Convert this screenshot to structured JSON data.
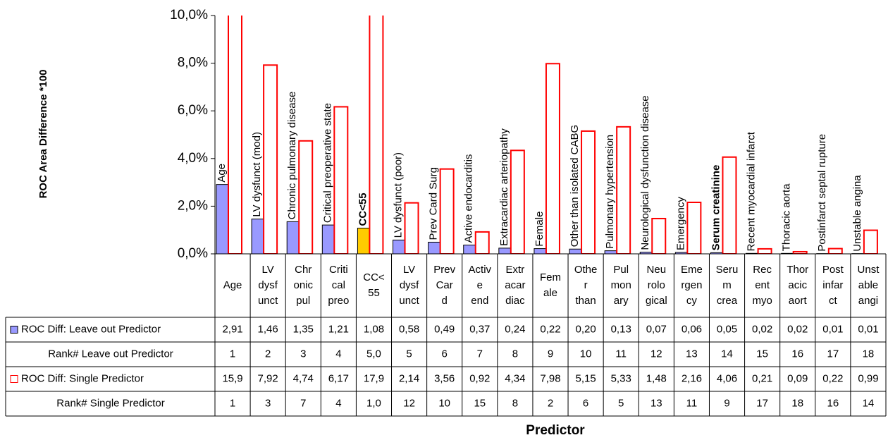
{
  "chart_data": {
    "type": "bar",
    "x_label": "Predictor",
    "y_label": "ROC Area Difference *100",
    "ylim": [
      0,
      10
    ],
    "yticks": [
      {
        "value": 0,
        "label": "0,0%"
      },
      {
        "value": 2,
        "label": "2,0%"
      },
      {
        "value": 4,
        "label": "4,0%"
      },
      {
        "value": 6,
        "label": "6,0%"
      },
      {
        "value": 8,
        "label": "8,0%"
      },
      {
        "value": 10,
        "label": "10,0%"
      }
    ],
    "grid": false,
    "categories": [
      [
        "Age"
      ],
      [
        "LV",
        "dysf",
        "unct"
      ],
      [
        "Chr",
        "onic",
        "pul"
      ],
      [
        "Criti",
        "cal",
        "preo"
      ],
      [
        "CC<",
        "55"
      ],
      [
        "LV",
        "dysf",
        "unct"
      ],
      [
        "Prev",
        "Car",
        "d"
      ],
      [
        "Activ",
        "e",
        "end"
      ],
      [
        "Extr",
        "acar",
        "diac"
      ],
      [
        "Fem",
        "ale"
      ],
      [
        "Othe",
        "r",
        "than"
      ],
      [
        "Pul",
        "mon",
        "ary"
      ],
      [
        "Neu",
        "rolo",
        "gical"
      ],
      [
        "Eme",
        "rgen",
        "cy"
      ],
      [
        "Seru",
        "m",
        "crea"
      ],
      [
        "Rec",
        "ent",
        "myo"
      ],
      [
        "Thor",
        "acic",
        "aort"
      ],
      [
        "Post",
        "infar",
        "ct"
      ],
      [
        "Unst",
        "able",
        "angi"
      ]
    ],
    "bar_labels": [
      {
        "text": "Age"
      },
      {
        "text": "LV dysfunct (mod)"
      },
      {
        "text": "Chronic pulmonary disease"
      },
      {
        "text": "Critical preoperative state"
      },
      {
        "text": "CC<55",
        "bold": true
      },
      {
        "text": "LV dysfunct (poor)"
      },
      {
        "text": "Prev Card Surg"
      },
      {
        "text": "Active endocarditis"
      },
      {
        "text": "Extracardiac arteriopathy"
      },
      {
        "text": "Female"
      },
      {
        "text": "Other than isolated CABG"
      },
      {
        "text": "Pulmonary hypertension"
      },
      {
        "text": "Neurological dysfunction disease"
      },
      {
        "text": "Emergency"
      },
      {
        "text": "Serum creatinine",
        "bold": true
      },
      {
        "text": "Recent myocardial infarct"
      },
      {
        "text": "Thoracic aorta"
      },
      {
        "text": "Postinfarct septal rupture"
      },
      {
        "text": "Unstable angina"
      }
    ],
    "series": [
      {
        "name": "ROC Diff: Leave out Predictor",
        "color": "#9999ff",
        "highlight": {
          "index": 4,
          "color": "#ffcc00"
        },
        "style": "filled",
        "values": [
          2.91,
          1.46,
          1.35,
          1.21,
          1.08,
          0.58,
          0.49,
          0.37,
          0.24,
          0.22,
          0.2,
          0.13,
          0.07,
          0.06,
          0.05,
          0.02,
          0.02,
          0.01,
          0.01
        ],
        "value_labels": [
          "2,91",
          "1,46",
          "1,35",
          "1,21",
          "1,08",
          "0,58",
          "0,49",
          "0,37",
          "0,24",
          "0,22",
          "0,20",
          "0,13",
          "0,07",
          "0,06",
          "0,05",
          "0,02",
          "0,02",
          "0,01",
          "0,01"
        ]
      },
      {
        "name": "ROC Diff: Single Predictor",
        "color": "#ff0000",
        "style": "outline",
        "values": [
          15.9,
          7.92,
          4.74,
          6.17,
          17.9,
          2.14,
          3.56,
          0.92,
          4.34,
          7.98,
          5.15,
          5.33,
          1.48,
          2.16,
          4.06,
          0.21,
          0.09,
          0.22,
          0.99
        ],
        "value_labels": [
          "15,9",
          "7,92",
          "4,74",
          "6,17",
          "17,9",
          "2,14",
          "3,56",
          "0,92",
          "4,34",
          "7,98",
          "5,15",
          "5,33",
          "1,48",
          "2,16",
          "4,06",
          "0,21",
          "0,09",
          "0,22",
          "0,99"
        ]
      }
    ],
    "rank_rows": [
      {
        "name": "Rank# Leave out Predictor",
        "after_series": 0,
        "values": [
          1,
          2,
          3,
          4,
          5,
          5,
          6,
          7,
          8,
          9,
          10,
          11,
          12,
          13,
          14,
          15,
          16,
          17,
          18
        ],
        "value_labels": [
          "1",
          "2",
          "3",
          "4",
          "5,0",
          "5",
          "6",
          "7",
          "8",
          "9",
          "10",
          "11",
          "12",
          "13",
          "14",
          "15",
          "16",
          "17",
          "18"
        ]
      },
      {
        "name": "Rank# Single Predictor",
        "after_series": 1,
        "values": [
          1,
          3,
          7,
          4,
          1,
          12,
          10,
          15,
          8,
          2,
          6,
          5,
          13,
          11,
          9,
          17,
          18,
          16,
          14
        ],
        "value_labels": [
          "1",
          "3",
          "7",
          "4",
          "1,0",
          "12",
          "10",
          "15",
          "8",
          "2",
          "6",
          "5",
          "13",
          "11",
          "9",
          "17",
          "18",
          "16",
          "14"
        ]
      }
    ]
  }
}
